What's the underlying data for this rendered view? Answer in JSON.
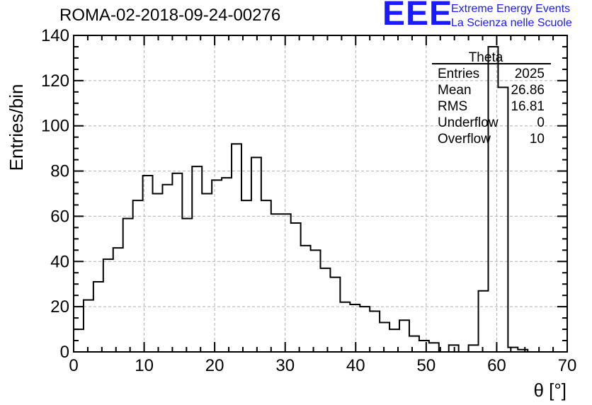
{
  "header": {
    "run_title": "ROMA-02-2018-09-24-00276",
    "logo_text": "EEE",
    "logo_line1": "Extreme Energy Events",
    "logo_line2": "La Scienza nelle Scuole",
    "logo_color": "#1a1aff"
  },
  "stats": {
    "name": "Theta",
    "rows": [
      {
        "label": "Entries",
        "value": "2025"
      },
      {
        "label": "Mean",
        "value": "26.86"
      },
      {
        "label": "RMS",
        "value": "16.81"
      },
      {
        "label": "Underflow",
        "value": "0"
      },
      {
        "label": "Overflow",
        "value": "10"
      }
    ]
  },
  "chart_data": {
    "type": "bar",
    "histogram": true,
    "bin_width": 1.4,
    "x_start": 0,
    "xlabel": "θ [°]",
    "ylabel": "Entries/bin",
    "xlim": [
      0,
      70
    ],
    "ylim": [
      0,
      140
    ],
    "x_ticks": [
      0,
      10,
      20,
      30,
      40,
      50,
      60,
      70
    ],
    "y_ticks": [
      0,
      20,
      40,
      60,
      80,
      100,
      120,
      140
    ],
    "grid": true,
    "values": [
      10,
      23,
      31,
      41,
      46,
      59,
      67,
      78,
      70,
      74,
      79,
      59,
      82,
      70,
      76,
      77,
      92,
      67,
      86,
      67,
      61,
      61,
      57,
      47,
      45,
      37,
      33,
      22,
      21,
      20,
      18,
      13,
      10,
      14,
      7,
      5,
      4,
      0,
      3,
      0,
      3,
      27,
      135,
      117,
      2,
      1,
      0,
      0,
      0,
      0
    ]
  }
}
